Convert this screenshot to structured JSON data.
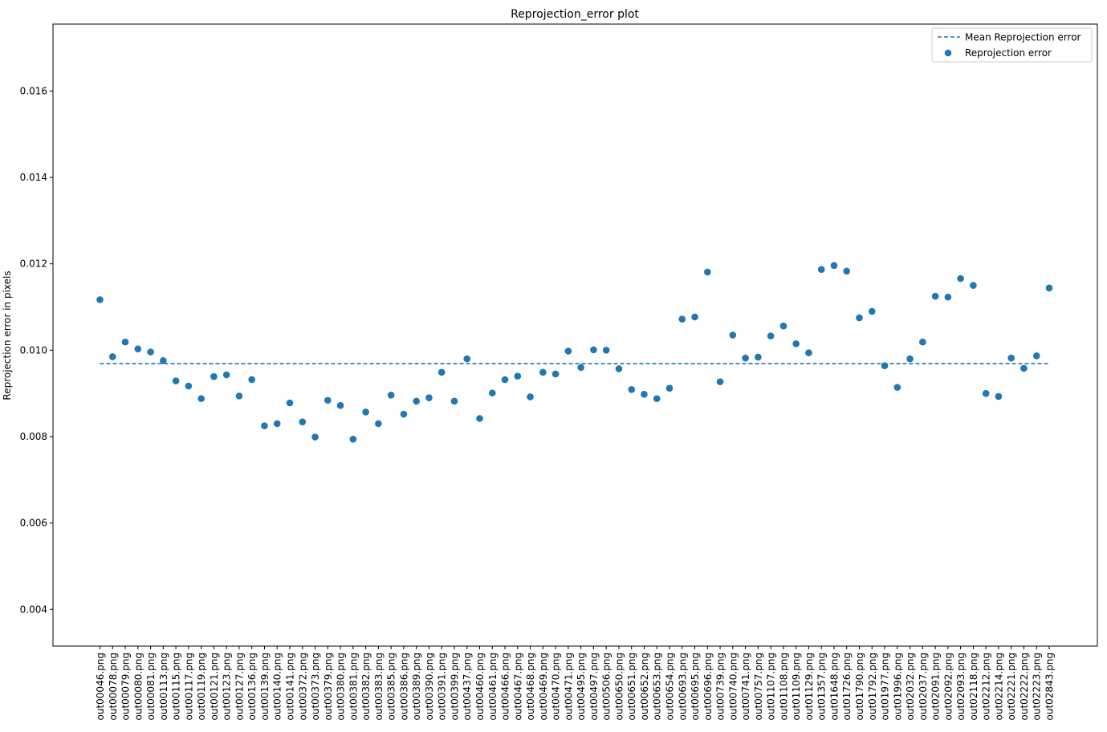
{
  "chart_data": {
    "type": "scatter",
    "title": "Reprojection_error plot",
    "xlabel": "",
    "ylabel": "Reprojection error in pixels",
    "ylim": [
      0.00315,
      0.01755
    ],
    "yticks": [
      0.004,
      0.006,
      0.008,
      0.01,
      0.012,
      0.014,
      0.016
    ],
    "ytick_labels": [
      "0.004",
      "0.006",
      "0.008",
      "0.010",
      "0.012",
      "0.014",
      "0.016"
    ],
    "grid": false,
    "legend_position": "top-right",
    "point_color": "#1f77b4",
    "categories": [
      "out00046.png",
      "out00078.png",
      "out00079.png",
      "out00080.png",
      "out00081.png",
      "out00113.png",
      "out00115.png",
      "out00117.png",
      "out00119.png",
      "out00121.png",
      "out00123.png",
      "out00127.png",
      "out00136.png",
      "out00139.png",
      "out00140.png",
      "out00141.png",
      "out00372.png",
      "out00373.png",
      "out00379.png",
      "out00380.png",
      "out00381.png",
      "out00382.png",
      "out00383.png",
      "out00385.png",
      "out00386.png",
      "out00389.png",
      "out00390.png",
      "out00391.png",
      "out00399.png",
      "out00437.png",
      "out00460.png",
      "out00461.png",
      "out00466.png",
      "out00467.png",
      "out00468.png",
      "out00469.png",
      "out00470.png",
      "out00471.png",
      "out00495.png",
      "out00497.png",
      "out00506.png",
      "out00650.png",
      "out00651.png",
      "out00652.png",
      "out00653.png",
      "out00654.png",
      "out00693.png",
      "out00695.png",
      "out00696.png",
      "out00739.png",
      "out00740.png",
      "out00741.png",
      "out00757.png",
      "out01107.png",
      "out01108.png",
      "out01109.png",
      "out01129.png",
      "out01357.png",
      "out01648.png",
      "out01726.png",
      "out01790.png",
      "out01792.png",
      "out01977.png",
      "out01996.png",
      "out02032.png",
      "out02037.png",
      "out02091.png",
      "out02092.png",
      "out02093.png",
      "out02118.png",
      "out02212.png",
      "out02214.png",
      "out02221.png",
      "out02222.png",
      "out02223.png",
      "out02843.png"
    ],
    "series": [
      {
        "name": "Reprojection error",
        "values": [
          0.01117,
          0.00985,
          0.01019,
          0.01003,
          0.00996,
          0.00976,
          0.00929,
          0.00917,
          0.00888,
          0.00939,
          0.00943,
          0.00894,
          0.00932,
          0.00825,
          0.0083,
          0.00878,
          0.00834,
          0.00799,
          0.00884,
          0.00872,
          0.00794,
          0.00857,
          0.0083,
          0.00896,
          0.00852,
          0.00882,
          0.0089,
          0.00949,
          0.00882,
          0.0098,
          0.00842,
          0.00901,
          0.00932,
          0.0094,
          0.00892,
          0.00949,
          0.00945,
          0.00998,
          0.0096,
          0.01001,
          0.01,
          0.00957,
          0.00909,
          0.00898,
          0.00888,
          0.00912,
          0.01072,
          0.01077,
          0.01181,
          0.00927,
          0.01035,
          0.00982,
          0.00984,
          0.01033,
          0.01056,
          0.01015,
          0.00994,
          0.01187,
          0.01196,
          0.01183,
          0.01075,
          0.0109,
          0.00964,
          0.00914,
          0.0098,
          0.01019,
          0.01125,
          0.01123,
          0.01166,
          0.0115,
          0.009,
          0.00893,
          0.00982,
          0.00958,
          0.00987,
          0.01144
        ]
      },
      {
        "name": "Mean Reprojection error",
        "style": "dashed",
        "value": 0.00969
      }
    ]
  }
}
